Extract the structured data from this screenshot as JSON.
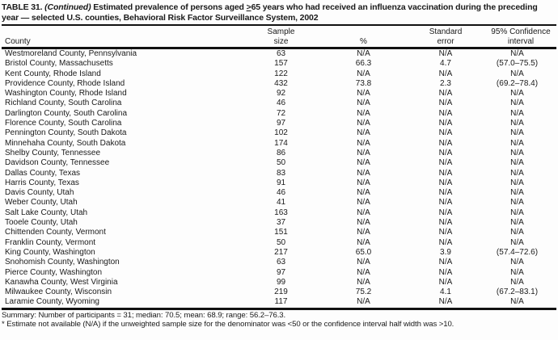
{
  "page": {
    "background_color": "#fdfdfd",
    "text_color": "#1a1a1a"
  },
  "table": {
    "title": {
      "label": "TABLE 31.",
      "continued": "(Continued)",
      "before_symbol": "Estimated prevalence of persons aged",
      "geq_symbol": ">",
      "after_symbol": "65 years who had received an influenza vaccination during the preceding year — selected U.S. counties, Behavioral Risk Factor Surveillance System, 2002"
    },
    "columns": [
      {
        "name": "county",
        "line1": "",
        "line2": "County"
      },
      {
        "name": "sample-size",
        "line1": "Sample",
        "line2": "size"
      },
      {
        "name": "percent",
        "line1": "",
        "line2": "%"
      },
      {
        "name": "standard-error",
        "line1": "Standard",
        "line2": "error"
      },
      {
        "name": "confidence-interval",
        "line1": "95% Confidence",
        "line2": "interval"
      }
    ],
    "rows": [
      {
        "county": "Westmoreland County, Pennsylvania",
        "sample_size": "63",
        "percent": "N/A",
        "standard_error": "N/A",
        "confidence_interval": "N/A"
      },
      {
        "county": "Bristol County, Massachusetts",
        "sample_size": "157",
        "percent": "66.3",
        "standard_error": "4.7",
        "confidence_interval": "(57.0–75.5)"
      },
      {
        "county": "Kent County, Rhode Island",
        "sample_size": "122",
        "percent": "N/A",
        "standard_error": "N/A",
        "confidence_interval": "N/A"
      },
      {
        "county": "Providence County, Rhode Island",
        "sample_size": "432",
        "percent": "73.8",
        "standard_error": "2.3",
        "confidence_interval": "(69.2–78.4)"
      },
      {
        "county": "Washington County, Rhode Island",
        "sample_size": "92",
        "percent": "N/A",
        "standard_error": "N/A",
        "confidence_interval": "N/A"
      },
      {
        "county": "Richland County, South Carolina",
        "sample_size": "46",
        "percent": "N/A",
        "standard_error": "N/A",
        "confidence_interval": "N/A"
      },
      {
        "county": "Darlington County, South Carolina",
        "sample_size": "72",
        "percent": "N/A",
        "standard_error": "N/A",
        "confidence_interval": "N/A"
      },
      {
        "county": "Florence County, South Carolina",
        "sample_size": "97",
        "percent": "N/A",
        "standard_error": "N/A",
        "confidence_interval": "N/A"
      },
      {
        "county": "Pennington County, South Dakota",
        "sample_size": "102",
        "percent": "N/A",
        "standard_error": "N/A",
        "confidence_interval": "N/A"
      },
      {
        "county": "Minnehaha County, South Dakota",
        "sample_size": "174",
        "percent": "N/A",
        "standard_error": "N/A",
        "confidence_interval": "N/A"
      },
      {
        "county": "Shelby County, Tennessee",
        "sample_size": "86",
        "percent": "N/A",
        "standard_error": "N/A",
        "confidence_interval": "N/A"
      },
      {
        "county": "Davidson County, Tennessee",
        "sample_size": "50",
        "percent": "N/A",
        "standard_error": "N/A",
        "confidence_interval": "N/A"
      },
      {
        "county": "Dallas County, Texas",
        "sample_size": "83",
        "percent": "N/A",
        "standard_error": "N/A",
        "confidence_interval": "N/A"
      },
      {
        "county": "Harris County, Texas",
        "sample_size": "91",
        "percent": "N/A",
        "standard_error": "N/A",
        "confidence_interval": "N/A"
      },
      {
        "county": "Davis County, Utah",
        "sample_size": "46",
        "percent": "N/A",
        "standard_error": "N/A",
        "confidence_interval": "N/A"
      },
      {
        "county": "Weber County, Utah",
        "sample_size": "41",
        "percent": "N/A",
        "standard_error": "N/A",
        "confidence_interval": "N/A"
      },
      {
        "county": "Salt Lake County, Utah",
        "sample_size": "163",
        "percent": "N/A",
        "standard_error": "N/A",
        "confidence_interval": "N/A"
      },
      {
        "county": "Tooele County, Utah",
        "sample_size": "37",
        "percent": "N/A",
        "standard_error": "N/A",
        "confidence_interval": "N/A"
      },
      {
        "county": "Chittenden County, Vermont",
        "sample_size": "151",
        "percent": "N/A",
        "standard_error": "N/A",
        "confidence_interval": "N/A"
      },
      {
        "county": "Franklin County, Vermont",
        "sample_size": "50",
        "percent": "N/A",
        "standard_error": "N/A",
        "confidence_interval": "N/A"
      },
      {
        "county": "King County, Washington",
        "sample_size": "217",
        "percent": "65.0",
        "standard_error": "3.9",
        "confidence_interval": "(57.4–72.6)"
      },
      {
        "county": "Snohomish County, Washington",
        "sample_size": "63",
        "percent": "N/A",
        "standard_error": "N/A",
        "confidence_interval": "N/A"
      },
      {
        "county": "Pierce County, Washington",
        "sample_size": "97",
        "percent": "N/A",
        "standard_error": "N/A",
        "confidence_interval": "N/A"
      },
      {
        "county": "Kanawha County, West Virginia",
        "sample_size": "99",
        "percent": "N/A",
        "standard_error": "N/A",
        "confidence_interval": "N/A"
      },
      {
        "county": "Milwaukee County, Wisconsin",
        "sample_size": "219",
        "percent": "75.2",
        "standard_error": "4.1",
        "confidence_interval": "(67.2–83.1)"
      },
      {
        "county": "Laramie County, Wyoming",
        "sample_size": "117",
        "percent": "N/A",
        "standard_error": "N/A",
        "confidence_interval": "N/A"
      }
    ],
    "summary": "Summary: Number of participants = 31; median: 70.5; mean: 68.9; range: 56.2–76.3.",
    "footnote": "* Estimate not available (N/A) if the unweighted sample size for the denominator was <50 or the confidence interval half width was >10."
  }
}
